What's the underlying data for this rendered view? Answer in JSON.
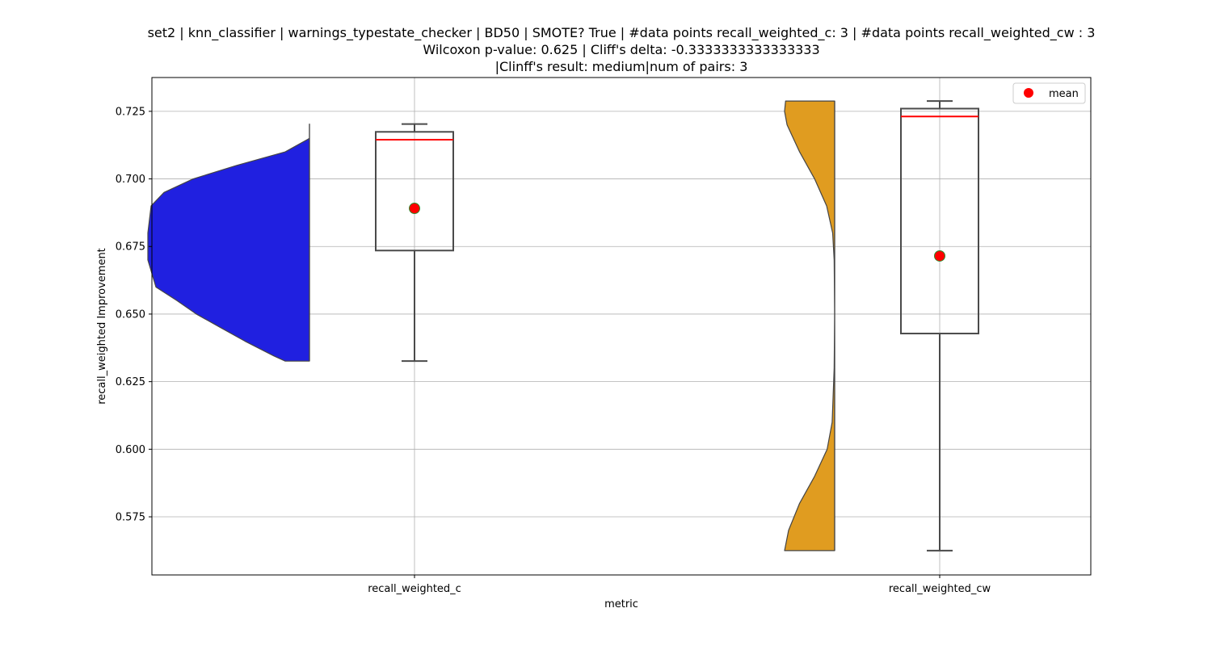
{
  "chart_data": {
    "type": "violin-box",
    "title_lines": [
      "set2 | knn_classifier | warnings_typestate_checker | BD50 | SMOTE? True | #data points recall_weighted_c: 3 | #data points recall_weighted_cw : 3",
      "Wilcoxon p-value: 0.625 | Cliff's delta: -0.3333333333333333",
      "|Clinff's result: medium|num of pairs: 3"
    ],
    "xlabel": "metric",
    "ylabel": "recall_weighted Improvement",
    "ylim": [
      0.5535,
      0.7375
    ],
    "yticks": [
      0.575,
      0.6,
      0.625,
      0.65,
      0.675,
      0.7,
      0.725
    ],
    "ytick_labels": [
      "0.575",
      "0.600",
      "0.625",
      "0.650",
      "0.675",
      "0.700",
      "0.725"
    ],
    "grid": true,
    "legend": {
      "position": "top-right",
      "entries": [
        {
          "label": "mean",
          "color": "#ff0000",
          "marker": "circle"
        }
      ]
    },
    "categories": [
      "recall_weighted_c",
      "recall_weighted_cw"
    ],
    "series": [
      {
        "category": "recall_weighted_c",
        "violin_color": "#2020e0",
        "violin_side": "left",
        "violin_range": [
          0.6326,
          0.7203
        ],
        "density_profile": [
          [
            0.6326,
            0.15
          ],
          [
            0.6345,
            0.22
          ],
          [
            0.64,
            0.4
          ],
          [
            0.645,
            0.55
          ],
          [
            0.65,
            0.7
          ],
          [
            0.655,
            0.82
          ],
          [
            0.66,
            0.95
          ],
          [
            0.67,
            1.0
          ],
          [
            0.68,
            1.0
          ],
          [
            0.69,
            0.98
          ],
          [
            0.695,
            0.9
          ],
          [
            0.7,
            0.72
          ],
          [
            0.705,
            0.45
          ],
          [
            0.71,
            0.15
          ],
          [
            0.715,
            0.0
          ],
          [
            0.7203,
            0.0
          ]
        ],
        "box": {
          "min": 0.6326,
          "q1": 0.6735,
          "median": 0.7145,
          "q3": 0.7174,
          "max": 0.7203
        },
        "mean": 0.6891
      },
      {
        "category": "recall_weighted_cw",
        "violin_color": "#e09c20",
        "violin_side": "left",
        "violin_range": [
          0.5625,
          0.7288
        ],
        "density_profile": [
          [
            0.5625,
            1.0
          ],
          [
            0.57,
            0.92
          ],
          [
            0.58,
            0.7
          ],
          [
            0.59,
            0.4
          ],
          [
            0.6,
            0.15
          ],
          [
            0.61,
            0.05
          ],
          [
            0.63,
            0.01
          ],
          [
            0.65,
            0.0
          ],
          [
            0.67,
            0.01
          ],
          [
            0.68,
            0.04
          ],
          [
            0.69,
            0.16
          ],
          [
            0.7,
            0.4
          ],
          [
            0.71,
            0.7
          ],
          [
            0.72,
            0.95
          ],
          [
            0.725,
            1.0
          ],
          [
            0.7288,
            0.98
          ]
        ],
        "box": {
          "min": 0.5625,
          "q1": 0.6428,
          "median": 0.7231,
          "q3": 0.726,
          "max": 0.7288
        },
        "mean": 0.6715
      }
    ]
  }
}
